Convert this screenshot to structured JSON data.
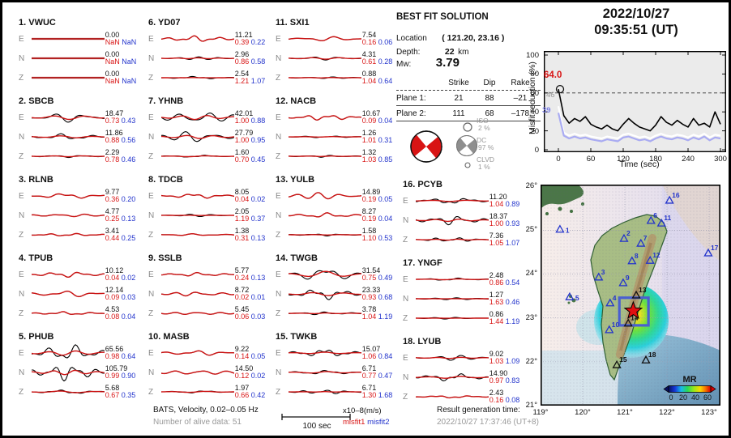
{
  "colors": {
    "misfit1": "#d81414",
    "misfit2": "#2233cc",
    "obs_trace": "#000000",
    "syn_trace": "#cc1111",
    "station_marker": "#2233cc",
    "epicenter_star": "#e01010",
    "alt_curve": "#a9abf2",
    "threshold_dash": "#333333"
  },
  "title": {
    "date": "2022/10/27",
    "time": "09:35:51  (UT)"
  },
  "solution": {
    "heading": "BEST FIT SOLUTION",
    "location_label": "Location",
    "location_value": "( 121.20,  23.16 )",
    "depth_label": "Depth:",
    "depth_value": "22",
    "depth_unit": "km",
    "mw_label": "Mw:",
    "mw_value": "3.79",
    "table": {
      "headers": [
        "Strike",
        "Dip",
        "Rake"
      ],
      "rows": [
        {
          "label": "Plane 1:",
          "strike": "21",
          "dip": "88",
          "rake": "–21"
        },
        {
          "label": "Plane 2:",
          "strike": "111",
          "dip": "68",
          "rake": "–178"
        }
      ]
    },
    "components": [
      {
        "name": "ISO",
        "pct": "2 %"
      },
      {
        "name": "DC",
        "pct": "97 %"
      },
      {
        "name": "CLVD",
        "pct": "1 %"
      }
    ]
  },
  "stations": [
    {
      "num": "1",
      "name": "VWUC",
      "channels": [
        {
          "ch": "E",
          "amp": "0.00",
          "m1": "NaN",
          "m2": "NaN"
        },
        {
          "ch": "N",
          "amp": "0.00",
          "m1": "NaN",
          "m2": "NaN"
        },
        {
          "ch": "Z",
          "amp": "0.00",
          "m1": "NaN",
          "m2": "NaN"
        }
      ]
    },
    {
      "num": "2",
      "name": "SBCB",
      "channels": [
        {
          "ch": "E",
          "amp": "18.47",
          "m1": "0.73",
          "m2": "0.43"
        },
        {
          "ch": "N",
          "amp": "11.86",
          "m1": "0.88",
          "m2": "0.56"
        },
        {
          "ch": "Z",
          "amp": "2.29",
          "m1": "0.78",
          "m2": "0.46"
        }
      ]
    },
    {
      "num": "3",
      "name": "RLNB",
      "channels": [
        {
          "ch": "E",
          "amp": "9.77",
          "m1": "0.36",
          "m2": "0.20"
        },
        {
          "ch": "N",
          "amp": "4.77",
          "m1": "0.25",
          "m2": "0.13"
        },
        {
          "ch": "Z",
          "amp": "3.41",
          "m1": "0.44",
          "m2": "0.25"
        }
      ]
    },
    {
      "num": "4",
      "name": "TPUB",
      "channels": [
        {
          "ch": "E",
          "amp": "10.12",
          "m1": "0.04",
          "m2": "0.02"
        },
        {
          "ch": "N",
          "amp": "12.14",
          "m1": "0.09",
          "m2": "0.03"
        },
        {
          "ch": "Z",
          "amp": "4.53",
          "m1": "0.08",
          "m2": "0.04"
        }
      ]
    },
    {
      "num": "5",
      "name": "PHUB",
      "channels": [
        {
          "ch": "E",
          "amp": "65.56",
          "m1": "0.98",
          "m2": "0.64"
        },
        {
          "ch": "N",
          "amp": "105.79",
          "m1": "0.99",
          "m2": "0.90"
        },
        {
          "ch": "Z",
          "amp": "5.68",
          "m1": "0.67",
          "m2": "0.35"
        }
      ]
    },
    {
      "num": "6",
      "name": "YD07",
      "channels": [
        {
          "ch": "E",
          "amp": "11.21",
          "m1": "0.39",
          "m2": "0.22"
        },
        {
          "ch": "N",
          "amp": "2.96",
          "m1": "0.86",
          "m2": "0.58"
        },
        {
          "ch": "Z",
          "amp": "2.54",
          "m1": "1.21",
          "m2": "1.07"
        }
      ]
    },
    {
      "num": "7",
      "name": "YHNB",
      "channels": [
        {
          "ch": "E",
          "amp": "42.01",
          "m1": "1.00",
          "m2": "0.88"
        },
        {
          "ch": "N",
          "amp": "27.79",
          "m1": "1.00",
          "m2": "0.95"
        },
        {
          "ch": "Z",
          "amp": "1.60",
          "m1": "0.70",
          "m2": "0.45"
        }
      ]
    },
    {
      "num": "8",
      "name": "TDCB",
      "channels": [
        {
          "ch": "E",
          "amp": "8.05",
          "m1": "0.04",
          "m2": "0.02"
        },
        {
          "ch": "N",
          "amp": "2.05",
          "m1": "1.19",
          "m2": "0.37"
        },
        {
          "ch": "Z",
          "amp": "1.38",
          "m1": "0.31",
          "m2": "0.13"
        }
      ]
    },
    {
      "num": "9",
      "name": "SSLB",
      "channels": [
        {
          "ch": "E",
          "amp": "5.77",
          "m1": "0.24",
          "m2": "0.13"
        },
        {
          "ch": "N",
          "amp": "8.72",
          "m1": "0.02",
          "m2": "0.01"
        },
        {
          "ch": "Z",
          "amp": "5.45",
          "m1": "0.06",
          "m2": "0.03"
        }
      ]
    },
    {
      "num": "10",
      "name": "MASB",
      "channels": [
        {
          "ch": "E",
          "amp": "9.22",
          "m1": "0.14",
          "m2": "0.05"
        },
        {
          "ch": "N",
          "amp": "14.50",
          "m1": "0.12",
          "m2": "0.02"
        },
        {
          "ch": "Z",
          "amp": "1.97",
          "m1": "0.66",
          "m2": "0.42"
        }
      ]
    },
    {
      "num": "11",
      "name": "SXI1",
      "channels": [
        {
          "ch": "E",
          "amp": "7.54",
          "m1": "0.16",
          "m2": "0.06"
        },
        {
          "ch": "N",
          "amp": "4.31",
          "m1": "0.61",
          "m2": "0.28"
        },
        {
          "ch": "Z",
          "amp": "0.88",
          "m1": "1.04",
          "m2": "0.64"
        }
      ]
    },
    {
      "num": "12",
      "name": "NACB",
      "channels": [
        {
          "ch": "E",
          "amp": "10.67",
          "m1": "0.09",
          "m2": "0.04"
        },
        {
          "ch": "N",
          "amp": "1.26",
          "m1": "1.01",
          "m2": "0.31"
        },
        {
          "ch": "Z",
          "amp": "1.32",
          "m1": "1.03",
          "m2": "0.85"
        }
      ]
    },
    {
      "num": "13",
      "name": "YULB",
      "channels": [
        {
          "ch": "E",
          "amp": "14.89",
          "m1": "0.19",
          "m2": "0.05"
        },
        {
          "ch": "N",
          "amp": "8.27",
          "m1": "0.19",
          "m2": "0.04"
        },
        {
          "ch": "Z",
          "amp": "1.58",
          "m1": "1.10",
          "m2": "0.53"
        }
      ]
    },
    {
      "num": "14",
      "name": "TWGB",
      "channels": [
        {
          "ch": "E",
          "amp": "31.54",
          "m1": "0.75",
          "m2": "0.49"
        },
        {
          "ch": "N",
          "amp": "23.33",
          "m1": "0.93",
          "m2": "0.68"
        },
        {
          "ch": "Z",
          "amp": "3.78",
          "m1": "1.04",
          "m2": "1.19"
        }
      ]
    },
    {
      "num": "15",
      "name": "TWKB",
      "channels": [
        {
          "ch": "E",
          "amp": "15.07",
          "m1": "1.06",
          "m2": "0.84"
        },
        {
          "ch": "N",
          "amp": "6.71",
          "m1": "0.77",
          "m2": "0.47"
        },
        {
          "ch": "Z",
          "amp": "6.71",
          "m1": "1.30",
          "m2": "1.68"
        }
      ]
    },
    {
      "num": "16",
      "name": "PCYB",
      "channels": [
        {
          "ch": "E",
          "amp": "11.20",
          "m1": "1.04",
          "m2": "0.89"
        },
        {
          "ch": "N",
          "amp": "18.37",
          "m1": "1.00",
          "m2": "0.93"
        },
        {
          "ch": "Z",
          "amp": "7.36",
          "m1": "1.05",
          "m2": "1.07"
        }
      ]
    },
    {
      "num": "17",
      "name": "YNGF",
      "channels": [
        {
          "ch": "E",
          "amp": "2.48",
          "m1": "0.86",
          "m2": "0.54"
        },
        {
          "ch": "N",
          "amp": "1.27",
          "m1": "1.63",
          "m2": "0.46"
        },
        {
          "ch": "Z",
          "amp": "0.86",
          "m1": "1.44",
          "m2": "1.19"
        }
      ]
    },
    {
      "num": "18",
      "name": "LYUB",
      "channels": [
        {
          "ch": "E",
          "amp": "9.02",
          "m1": "1.03",
          "m2": "1.09"
        },
        {
          "ch": "N",
          "amp": "14.90",
          "m1": "0.97",
          "m2": "0.83"
        },
        {
          "ch": "Z",
          "amp": "2.43",
          "m1": "0.16",
          "m2": "0.08"
        }
      ]
    }
  ],
  "footer": {
    "band": "BATS, Velocity, 0.02–0.05 Hz",
    "alive": "Number of alive data: 51",
    "scalebar": "100 sec",
    "units": "x10–8(m/s)",
    "misfit1_label": "misfit1",
    "misfit2_label": "misfit2",
    "result_label": "Result generation time:",
    "result_time": "2022/10/27 17:37:46 (UT+8)"
  },
  "chart_data": {
    "type": "line",
    "title": "2022/10/27 09:35:51 (UT)",
    "xlabel": "Time (sec)",
    "ylabel": "Misfit reduction (%)",
    "xlim": [
      -27,
      310
    ],
    "ylim": [
      0,
      105
    ],
    "grid": false,
    "legend_position": "none",
    "x": [
      0,
      10,
      20,
      30,
      40,
      50,
      60,
      70,
      80,
      90,
      100,
      110,
      120,
      130,
      140,
      150,
      160,
      170,
      180,
      190,
      200,
      210,
      220,
      230,
      240,
      250,
      260,
      270,
      280,
      290,
      300
    ],
    "series": [
      {
        "name": "best solution misfit (black)",
        "color": "#000000",
        "values": [
          64,
          36,
          28,
          33,
          30,
          35,
          27,
          24,
          22,
          26,
          22,
          20,
          27,
          33,
          28,
          24,
          22,
          20,
          26,
          35,
          29,
          26,
          31,
          27,
          24,
          33,
          26,
          28,
          24,
          40,
          27
        ]
      },
      {
        "name": "reference misfit (white)",
        "color": "#ffffff",
        "values": [
          46,
          18,
          15,
          17,
          15,
          16,
          14,
          13,
          12,
          14,
          13,
          12,
          16,
          17,
          15,
          13,
          14,
          12,
          15,
          17,
          15,
          14,
          16,
          15,
          13,
          16,
          14,
          17,
          13,
          16,
          15
        ]
      },
      {
        "name": "alternative misfit (lavender)",
        "color": "#a9abf2",
        "values": [
          39,
          15,
          12,
          14,
          12,
          13,
          11,
          10,
          9,
          11,
          10,
          9,
          13,
          14,
          12,
          10,
          11,
          9,
          12,
          14,
          12,
          11,
          13,
          12,
          10,
          13,
          11,
          14,
          10,
          13,
          12
        ]
      }
    ],
    "dashed_threshold": 60,
    "marker": {
      "x": 0,
      "y": 64
    },
    "annotations": [
      {
        "text": "64.0",
        "color": "#d81414"
      },
      {
        "text": "46",
        "color": "#999999"
      },
      {
        "text": "39",
        "color": "#7b7fe6"
      }
    ],
    "xticks": [
      0,
      60,
      120,
      180,
      240,
      300
    ],
    "yticks": [
      0,
      20,
      40,
      60,
      80,
      100
    ]
  },
  "map": {
    "lon_ticks": [
      {
        "label": "119°",
        "value": 119
      },
      {
        "label": "120°",
        "value": 120
      },
      {
        "label": "121°",
        "value": 121
      },
      {
        "label": "122°",
        "value": 122
      },
      {
        "label": "123°",
        "value": 123
      }
    ],
    "lat_ticks": [
      {
        "label": "26°",
        "value": 26
      },
      {
        "label": "25°",
        "value": 25
      },
      {
        "label": "24°",
        "value": 24
      },
      {
        "label": "23°",
        "value": 23
      },
      {
        "label": "22°",
        "value": 22
      },
      {
        "label": "21°",
        "value": 21
      }
    ],
    "stations": [
      {
        "num": "1",
        "lon": 119.46,
        "lat": 25.01,
        "color": "blue"
      },
      {
        "num": "2",
        "lon": 120.98,
        "lat": 24.8,
        "color": "blue"
      },
      {
        "num": "3",
        "lon": 120.38,
        "lat": 23.92,
        "color": "blue"
      },
      {
        "num": "4",
        "lon": 120.65,
        "lat": 23.33,
        "color": "blue"
      },
      {
        "num": "5",
        "lon": 119.69,
        "lat": 23.47,
        "color": "blue"
      },
      {
        "num": "6",
        "lon": 121.62,
        "lat": 25.21,
        "color": "blue"
      },
      {
        "num": "7",
        "lon": 121.38,
        "lat": 24.69,
        "color": "blue"
      },
      {
        "num": "8",
        "lon": 121.17,
        "lat": 24.29,
        "color": "blue"
      },
      {
        "num": "9",
        "lon": 120.96,
        "lat": 23.79,
        "color": "blue"
      },
      {
        "num": "10",
        "lon": 120.63,
        "lat": 22.72,
        "color": "blue"
      },
      {
        "num": "11",
        "lon": 121.87,
        "lat": 25.15,
        "color": "blue"
      },
      {
        "num": "12",
        "lon": 121.6,
        "lat": 24.3,
        "color": "blue"
      },
      {
        "num": "13",
        "lon": 121.27,
        "lat": 23.51,
        "color": "black"
      },
      {
        "num": "14",
        "lon": 121.08,
        "lat": 22.87,
        "color": "black"
      },
      {
        "num": "15",
        "lon": 120.81,
        "lat": 21.92,
        "color": "black"
      },
      {
        "num": "16",
        "lon": 122.06,
        "lat": 25.67,
        "color": "blue"
      },
      {
        "num": "17",
        "lon": 122.98,
        "lat": 24.47,
        "color": "blue"
      },
      {
        "num": "18",
        "lon": 121.5,
        "lat": 22.03,
        "color": "black"
      }
    ],
    "epicenter": {
      "lon": 121.2,
      "lat": 23.16
    },
    "search_box": {
      "lon_min": 120.87,
      "lon_max": 121.56,
      "lat_min": 22.83,
      "lat_max": 23.46
    },
    "colorbar": {
      "label": "MR",
      "ticks": [
        "0",
        "20",
        "40",
        "60"
      ]
    }
  }
}
